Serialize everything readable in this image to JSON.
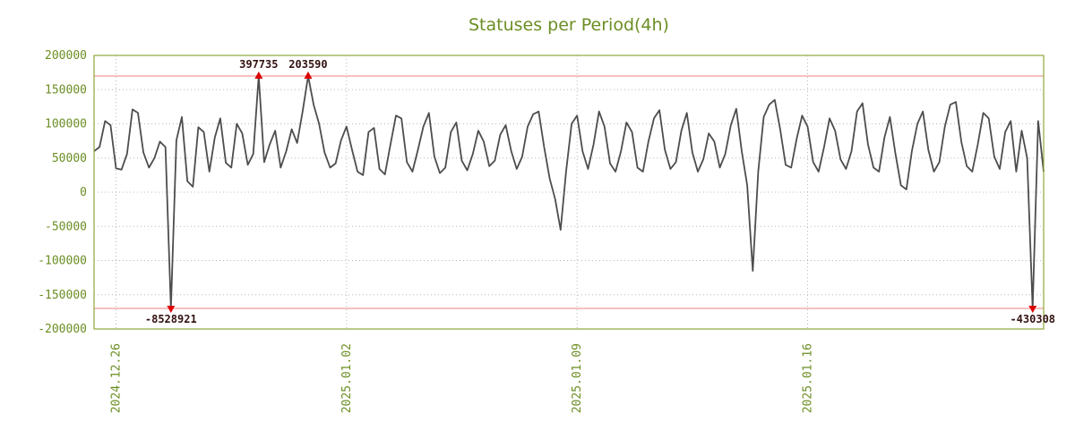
{
  "chart_data": {
    "type": "line",
    "title": "Statuses per Period(4h)",
    "interval": "4h",
    "ylim": [
      -200000,
      200000
    ],
    "grid": true,
    "colors": {
      "series": "#4d4d4d",
      "grid": "#b8b8b8",
      "limit": "#f08080",
      "marker": "#dd0000",
      "axis_text": "#6b8e23",
      "border": "#8ea838",
      "annotation_text": "#331111",
      "background": "#ffffff"
    },
    "y_ticks": [
      {
        "label": "200000",
        "value": 200000
      },
      {
        "label": "150000",
        "value": 150000
      },
      {
        "label": "100000",
        "value": 100000
      },
      {
        "label": "50000",
        "value": 50000
      },
      {
        "label": "0",
        "value": 0
      },
      {
        "label": "-50000",
        "value": -50000
      },
      {
        "label": "-100000",
        "value": -100000
      },
      {
        "label": "-150000",
        "value": -150000
      },
      {
        "label": "-200000",
        "value": -200000
      }
    ],
    "x_ticks": [
      {
        "label": "2024.12.26",
        "index": 4
      },
      {
        "label": "2025.01.02",
        "index": 46
      },
      {
        "label": "2025.01.09",
        "index": 88
      },
      {
        "label": "2025.01.16",
        "index": 130
      }
    ],
    "limit_lines": {
      "upper": 170000,
      "lower": -170000
    },
    "annotations": [
      {
        "index": 14,
        "value": -8528921,
        "label": "-8528921",
        "clip": "bottom"
      },
      {
        "index": 30,
        "value": 397735,
        "label": "397735",
        "clip": "top"
      },
      {
        "index": 39,
        "value": 203590,
        "label": "203590",
        "clip": "top"
      },
      {
        "index": 171,
        "value": -430308,
        "label": "-430308",
        "clip": "bottom"
      }
    ],
    "series": [
      {
        "name": "statuses",
        "values": [
          60000,
          66000,
          104000,
          98000,
          35000,
          33000,
          56000,
          121000,
          116000,
          58000,
          36000,
          50000,
          74000,
          66000,
          -8528921,
          76000,
          110000,
          16000,
          8000,
          95000,
          88000,
          30000,
          80000,
          108000,
          43000,
          36000,
          100000,
          86000,
          40000,
          56000,
          397735,
          44000,
          70000,
          90000,
          36000,
          60000,
          92000,
          72000,
          118000,
          203590,
          128000,
          100000,
          58000,
          36000,
          42000,
          76000,
          96000,
          62000,
          30000,
          25000,
          88000,
          94000,
          34000,
          26000,
          70000,
          112000,
          108000,
          44000,
          30000,
          62000,
          96000,
          116000,
          52000,
          28000,
          36000,
          88000,
          102000,
          46000,
          32000,
          56000,
          90000,
          74000,
          38000,
          46000,
          84000,
          98000,
          60000,
          34000,
          52000,
          96000,
          114000,
          118000,
          66000,
          20000,
          -10000,
          -55000,
          30000,
          100000,
          112000,
          60000,
          34000,
          70000,
          118000,
          96000,
          42000,
          30000,
          60000,
          102000,
          88000,
          36000,
          30000,
          74000,
          108000,
          120000,
          62000,
          34000,
          44000,
          90000,
          116000,
          58000,
          30000,
          48000,
          86000,
          74000,
          36000,
          56000,
          98000,
          122000,
          60000,
          10000,
          -115000,
          30000,
          110000,
          128000,
          135000,
          92000,
          40000,
          36000,
          78000,
          112000,
          96000,
          44000,
          30000,
          66000,
          108000,
          90000,
          48000,
          34000,
          60000,
          118000,
          130000,
          70000,
          36000,
          30000,
          80000,
          110000,
          56000,
          10000,
          4000,
          60000,
          100000,
          118000,
          62000,
          30000,
          44000,
          96000,
          128000,
          132000,
          74000,
          38000,
          30000,
          70000,
          116000,
          108000,
          52000,
          34000,
          88000,
          104000,
          30000,
          90000,
          50000,
          -430308,
          104000,
          30000
        ]
      }
    ]
  }
}
